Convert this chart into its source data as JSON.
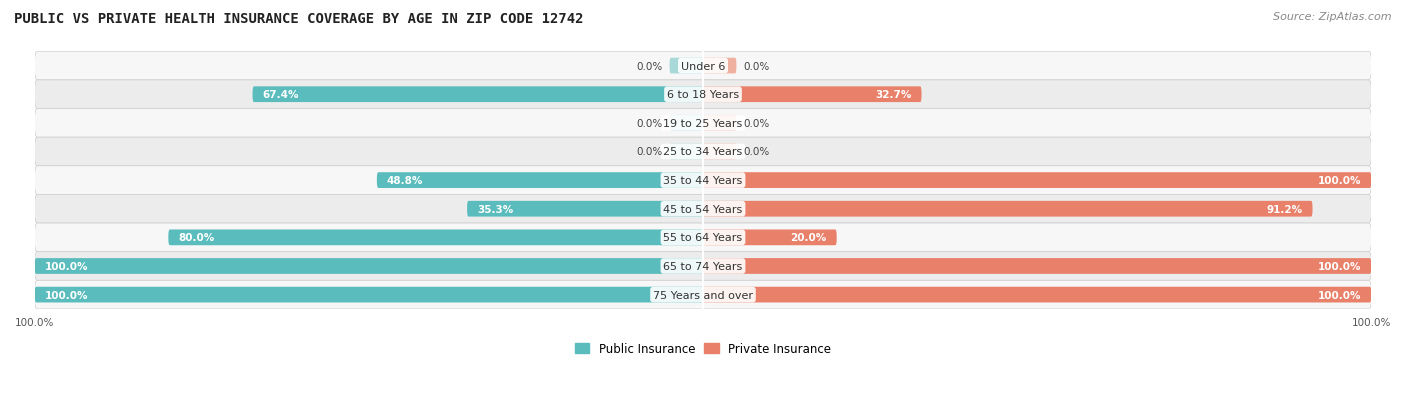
{
  "title": "PUBLIC VS PRIVATE HEALTH INSURANCE COVERAGE BY AGE IN ZIP CODE 12742",
  "source": "Source: ZipAtlas.com",
  "categories": [
    "Under 6",
    "6 to 18 Years",
    "19 to 25 Years",
    "25 to 34 Years",
    "35 to 44 Years",
    "45 to 54 Years",
    "55 to 64 Years",
    "65 to 74 Years",
    "75 Years and over"
  ],
  "public_values": [
    0.0,
    67.4,
    0.0,
    0.0,
    48.8,
    35.3,
    80.0,
    100.0,
    100.0
  ],
  "private_values": [
    0.0,
    32.7,
    0.0,
    0.0,
    100.0,
    91.2,
    20.0,
    100.0,
    100.0
  ],
  "public_color": "#5bbcbd",
  "public_color_light": "#a8d8d8",
  "private_color": "#e8806a",
  "private_color_light": "#f0b0a0",
  "public_label": "Public Insurance",
  "private_label": "Private Insurance",
  "figure_bg": "#ffffff",
  "row_bg_odd": "#f7f7f7",
  "row_bg_even": "#ececec",
  "title_fontsize": 10,
  "source_fontsize": 8,
  "label_fontsize": 8,
  "value_fontsize": 7.5,
  "max_value": 100.0,
  "bar_height": 0.55,
  "zero_stub": 5.0
}
